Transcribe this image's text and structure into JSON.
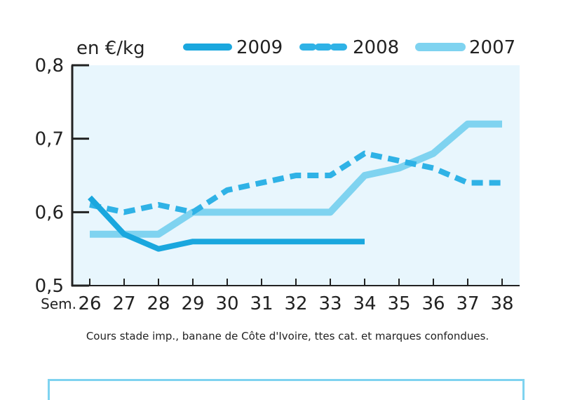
{
  "chart_data": {
    "type": "line",
    "unit_label": "en €/kg",
    "x_prefix": "Sem.",
    "x": [
      26,
      27,
      28,
      29,
      30,
      31,
      32,
      33,
      34,
      35,
      36,
      37,
      38
    ],
    "ylim": [
      0.5,
      0.8
    ],
    "y_ticks": [
      {
        "value": 0.5,
        "label": "0,5"
      },
      {
        "value": 0.6,
        "label": "0,6"
      },
      {
        "value": 0.7,
        "label": "0,7"
      },
      {
        "value": 0.8,
        "label": "0,8"
      }
    ],
    "legend_position": "top",
    "background_color": "#e8f6fd",
    "series": [
      {
        "name": "2009",
        "style": "solid",
        "color": "#1aa7de",
        "values": [
          0.62,
          0.57,
          0.55,
          0.56,
          0.56,
          0.56,
          0.56,
          0.56,
          0.56,
          null,
          null,
          null,
          null
        ]
      },
      {
        "name": "2008",
        "style": "dashed",
        "color": "#2fb2e6",
        "values": [
          0.61,
          0.6,
          0.61,
          0.6,
          0.63,
          0.64,
          0.65,
          0.65,
          0.68,
          0.67,
          0.66,
          0.64,
          0.64
        ]
      },
      {
        "name": "2007",
        "style": "solid-light",
        "color": "#7fd3f0",
        "values": [
          0.57,
          0.57,
          0.57,
          0.6,
          0.6,
          0.6,
          0.6,
          0.6,
          0.65,
          0.66,
          0.68,
          0.72,
          0.72
        ]
      }
    ]
  },
  "caption": "Cours stade imp., banane de Côte d'Ivoire, ttes cat. et marques confondues."
}
